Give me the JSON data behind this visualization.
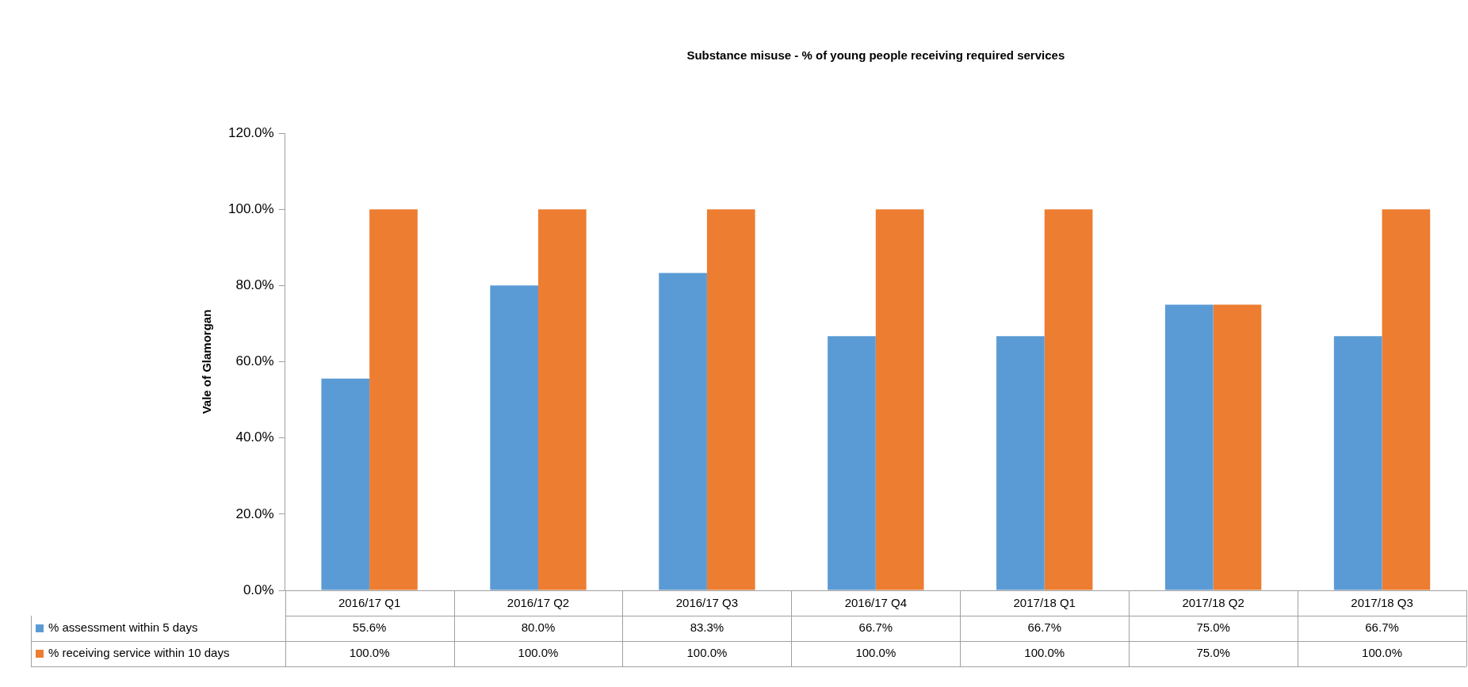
{
  "chart_data": {
    "type": "bar",
    "title": "Substance misuse - % of young people receiving required services",
    "ylabel": "Vale of Glamorgan",
    "categories": [
      "2016/17 Q1",
      "2016/17 Q2",
      "2016/17 Q3",
      "2016/17 Q4",
      "2017/18 Q1",
      "2017/18 Q2",
      "2017/18 Q3"
    ],
    "series": [
      {
        "name": "% assessment within 5 days",
        "color": "#5b9bd5",
        "values": [
          55.6,
          80.0,
          83.3,
          66.7,
          66.7,
          75.0,
          66.7
        ],
        "value_labels": [
          "55.6%",
          "80.0%",
          "83.3%",
          "66.7%",
          "66.7%",
          "75.0%",
          "66.7%"
        ]
      },
      {
        "name": "% receiving service within 10 days",
        "color": "#ed7d31",
        "values": [
          100.0,
          100.0,
          100.0,
          100.0,
          100.0,
          75.0,
          100.0
        ],
        "value_labels": [
          "100.0%",
          "100.0%",
          "100.0%",
          "100.0%",
          "100.0%",
          "75.0%",
          "100.0%"
        ]
      }
    ],
    "ylim": [
      0,
      120
    ],
    "yticks": [
      {
        "value": 0,
        "label": "0.0%"
      },
      {
        "value": 20,
        "label": "20.0%"
      },
      {
        "value": 40,
        "label": "40.0%"
      },
      {
        "value": 60,
        "label": "60.0%"
      },
      {
        "value": 80,
        "label": "80.0%"
      },
      {
        "value": 100,
        "label": "100.0%"
      },
      {
        "value": 120,
        "label": "120.0%"
      }
    ],
    "grid": false,
    "legend": "bottom"
  }
}
